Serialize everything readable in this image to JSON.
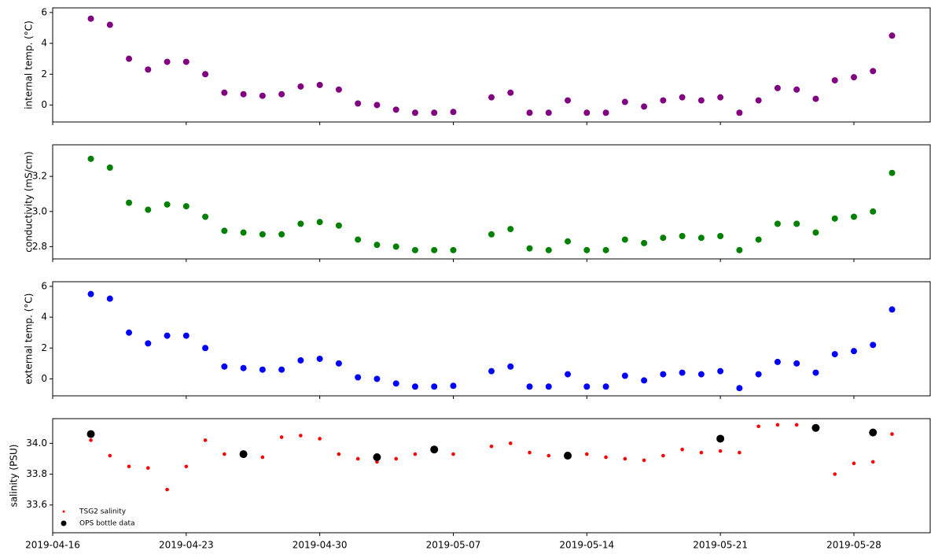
{
  "chart_data": [
    {
      "type": "scatter",
      "ylabel": "internal temp. (°C)",
      "ylim": [
        -1.1,
        6.3
      ],
      "yticks": [
        0,
        2,
        4,
        6
      ],
      "xlim": [
        "2019-04-16",
        "2019-06-01"
      ],
      "xticks": [
        "2019-04-16",
        "2019-04-23",
        "2019-04-30",
        "2019-05-07",
        "2019-05-14",
        "2019-05-21",
        "2019-05-28"
      ],
      "series": [
        {
          "color": "#800080",
          "x": [
            "2019-04-18",
            "2019-04-19",
            "2019-04-20",
            "2019-04-21",
            "2019-04-22",
            "2019-04-23",
            "2019-04-24",
            "2019-04-25",
            "2019-04-26",
            "2019-04-27",
            "2019-04-28",
            "2019-04-29",
            "2019-04-30",
            "2019-05-01",
            "2019-05-02",
            "2019-05-03",
            "2019-05-04",
            "2019-05-05",
            "2019-05-06",
            "2019-05-07",
            "2019-05-08",
            "2019-05-09",
            "2019-05-10",
            "2019-05-11",
            "2019-05-12",
            "2019-05-13",
            "2019-05-14",
            "2019-05-15",
            "2019-05-16",
            "2019-05-17",
            "2019-05-18",
            "2019-05-19",
            "2019-05-20",
            "2019-05-21",
            "2019-05-22",
            "2019-05-23",
            "2019-05-24",
            "2019-05-25",
            "2019-05-26",
            "2019-05-27",
            "2019-05-28",
            "2019-05-29",
            "2019-05-30"
          ],
          "values": [
            5.6,
            5.2,
            3.0,
            2.3,
            2.8,
            2.8,
            2.0,
            0.8,
            0.7,
            0.6,
            0.7,
            1.2,
            1.3,
            1.0,
            0.1,
            0.0,
            -0.3,
            -0.5,
            -0.5,
            -0.45,
            null,
            0.5,
            0.8,
            -0.5,
            -0.5,
            0.3,
            -0.5,
            -0.5,
            0.2,
            -0.1,
            0.3,
            0.5,
            0.3,
            0.5,
            -0.5,
            0.3,
            1.1,
            1.0,
            0.4,
            1.6,
            1.8,
            2.2,
            4.5
          ]
        }
      ]
    },
    {
      "type": "scatter",
      "ylabel": "conductivity (mS/cm)",
      "ylim": [
        2.73,
        3.38
      ],
      "yticks": [
        2.8,
        {
          "value": 3,
          "label": "3.0"
        },
        3.2
      ],
      "xlim": [
        "2019-04-16",
        "2019-06-01"
      ],
      "xticks": [
        "2019-04-16",
        "2019-04-23",
        "2019-04-30",
        "2019-05-07",
        "2019-05-14",
        "2019-05-21",
        "2019-05-28"
      ],
      "series": [
        {
          "color": "#008000",
          "x": [
            "2019-04-18",
            "2019-04-19",
            "2019-04-20",
            "2019-04-21",
            "2019-04-22",
            "2019-04-23",
            "2019-04-24",
            "2019-04-25",
            "2019-04-26",
            "2019-04-27",
            "2019-04-28",
            "2019-04-29",
            "2019-04-30",
            "2019-05-01",
            "2019-05-02",
            "2019-05-03",
            "2019-05-04",
            "2019-05-05",
            "2019-05-06",
            "2019-05-07",
            "2019-05-08",
            "2019-05-09",
            "2019-05-10",
            "2019-05-11",
            "2019-05-12",
            "2019-05-13",
            "2019-05-14",
            "2019-05-15",
            "2019-05-16",
            "2019-05-17",
            "2019-05-18",
            "2019-05-19",
            "2019-05-20",
            "2019-05-21",
            "2019-05-22",
            "2019-05-23",
            "2019-05-24",
            "2019-05-25",
            "2019-05-26",
            "2019-05-27",
            "2019-05-28",
            "2019-05-29",
            "2019-05-30"
          ],
          "values": [
            3.3,
            3.25,
            3.05,
            3.01,
            3.04,
            3.03,
            2.97,
            2.89,
            2.88,
            2.87,
            2.87,
            2.93,
            2.94,
            2.92,
            2.84,
            2.81,
            2.8,
            2.78,
            2.78,
            2.78,
            null,
            2.87,
            2.9,
            2.79,
            2.78,
            2.83,
            2.78,
            2.78,
            2.84,
            2.82,
            2.85,
            2.86,
            2.85,
            2.86,
            2.78,
            2.84,
            2.93,
            2.93,
            2.88,
            2.96,
            2.97,
            3.0,
            3.22
          ]
        }
      ]
    },
    {
      "type": "scatter",
      "ylabel": "external temp. (°C)",
      "ylim": [
        -1.1,
        6.3
      ],
      "yticks": [
        0,
        2,
        4,
        6
      ],
      "xlim": [
        "2019-04-16",
        "2019-06-01"
      ],
      "xticks": [
        "2019-04-16",
        "2019-04-23",
        "2019-04-30",
        "2019-05-07",
        "2019-05-14",
        "2019-05-21",
        "2019-05-28"
      ],
      "series": [
        {
          "color": "#0000ff",
          "x": [
            "2019-04-18",
            "2019-04-19",
            "2019-04-20",
            "2019-04-21",
            "2019-04-22",
            "2019-04-23",
            "2019-04-24",
            "2019-04-25",
            "2019-04-26",
            "2019-04-27",
            "2019-04-28",
            "2019-04-29",
            "2019-04-30",
            "2019-05-01",
            "2019-05-02",
            "2019-05-03",
            "2019-05-04",
            "2019-05-05",
            "2019-05-06",
            "2019-05-07",
            "2019-05-08",
            "2019-05-09",
            "2019-05-10",
            "2019-05-11",
            "2019-05-12",
            "2019-05-13",
            "2019-05-14",
            "2019-05-15",
            "2019-05-16",
            "2019-05-17",
            "2019-05-18",
            "2019-05-19",
            "2019-05-20",
            "2019-05-21",
            "2019-05-22",
            "2019-05-23",
            "2019-05-24",
            "2019-05-25",
            "2019-05-26",
            "2019-05-27",
            "2019-05-28",
            "2019-05-29",
            "2019-05-30"
          ],
          "values": [
            5.5,
            5.2,
            3.0,
            2.3,
            2.8,
            2.8,
            2.0,
            0.8,
            0.7,
            0.6,
            0.6,
            1.2,
            1.3,
            1.0,
            0.1,
            0.0,
            -0.3,
            -0.5,
            -0.5,
            -0.45,
            null,
            0.5,
            0.8,
            -0.5,
            -0.5,
            0.3,
            -0.5,
            -0.5,
            0.2,
            -0.1,
            0.3,
            0.4,
            0.3,
            0.5,
            -0.6,
            0.3,
            1.1,
            1.0,
            0.4,
            1.6,
            1.8,
            2.2,
            4.5
          ]
        }
      ]
    },
    {
      "type": "scatter",
      "ylabel": "salinity (PSU)",
      "ylim": [
        33.42,
        34.16
      ],
      "yticks": [
        33.6,
        33.8,
        {
          "value": 34,
          "label": "34.0"
        }
      ],
      "xlim": [
        "2019-04-16",
        "2019-06-01"
      ],
      "xticks": [
        "2019-04-16",
        "2019-04-23",
        "2019-04-30",
        "2019-05-07",
        "2019-05-14",
        "2019-05-21",
        "2019-05-28"
      ],
      "legend": "lower left",
      "series": [
        {
          "name": "TSG2 salinity",
          "color": "#ff0000",
          "x": [
            "2019-04-18",
            "2019-04-19",
            "2019-04-20",
            "2019-04-21",
            "2019-04-22",
            "2019-04-23",
            "2019-04-24",
            "2019-04-25",
            "2019-04-26",
            "2019-04-27",
            "2019-04-28",
            "2019-04-29",
            "2019-04-30",
            "2019-05-01",
            "2019-05-02",
            "2019-05-03",
            "2019-05-04",
            "2019-05-05",
            "2019-05-06",
            "2019-05-07",
            "2019-05-08",
            "2019-05-09",
            "2019-05-10",
            "2019-05-11",
            "2019-05-12",
            "2019-05-13",
            "2019-05-14",
            "2019-05-15",
            "2019-05-16",
            "2019-05-17",
            "2019-05-18",
            "2019-05-19",
            "2019-05-20",
            "2019-05-21",
            "2019-05-22",
            "2019-05-23",
            "2019-05-24",
            "2019-05-25",
            "2019-05-26",
            "2019-05-27",
            "2019-05-28",
            "2019-05-29",
            "2019-05-30"
          ],
          "values": [
            34.02,
            33.92,
            33.85,
            33.84,
            33.7,
            33.85,
            34.02,
            33.93,
            33.93,
            33.91,
            34.04,
            34.05,
            34.03,
            33.93,
            33.9,
            33.88,
            33.9,
            33.93,
            33.95,
            33.93,
            null,
            33.98,
            34.0,
            33.94,
            33.92,
            33.93,
            33.93,
            33.91,
            33.9,
            33.89,
            33.92,
            33.96,
            33.94,
            33.95,
            33.94,
            34.11,
            34.12,
            34.12,
            34.1,
            33.8,
            33.87,
            33.88,
            34.06
          ]
        },
        {
          "name": "OPS bottle data",
          "color": "#000000",
          "x": [
            "2019-04-18",
            "2019-04-26",
            "2019-05-03",
            "2019-05-06",
            "2019-05-13",
            "2019-05-21",
            "2019-05-26",
            "2019-05-29"
          ],
          "values": [
            34.06,
            33.93,
            33.91,
            33.96,
            33.92,
            34.03,
            34.1,
            34.07
          ]
        }
      ]
    }
  ]
}
